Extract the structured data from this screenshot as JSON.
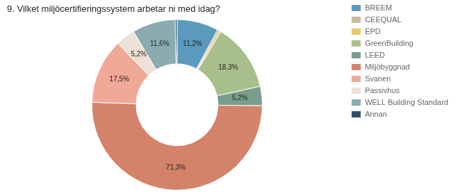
{
  "chart_data": {
    "type": "doughnut",
    "title": "9. Vilket miljöcertifieringssystem arbetar ni med idag?",
    "categories": [
      "BREEM",
      "CEEQUAL",
      "EPD",
      "GreenBuilding",
      "LEED",
      "Miljöbyggnad",
      "Svanen",
      "Passivhus",
      "WELL Building Standard",
      "Annan"
    ],
    "values": [
      11.2,
      0.5,
      0.5,
      18.3,
      5.2,
      71.3,
      17.5,
      5.2,
      11.6,
      0.5
    ],
    "value_labels": [
      "11,2%",
      null,
      null,
      "18,3%",
      "5,2%",
      "71,3%",
      "17,5%",
      "5,2%",
      "11,6%",
      null
    ],
    "colors": [
      "#5b9abd",
      "#c9b99a",
      "#e8c96a",
      "#a8bf8c",
      "#7a9e8c",
      "#d4826a",
      "#f0a898",
      "#ede0d4",
      "#8aacb0",
      "#2a5068"
    ],
    "data_labels": true,
    "legend": "right"
  }
}
